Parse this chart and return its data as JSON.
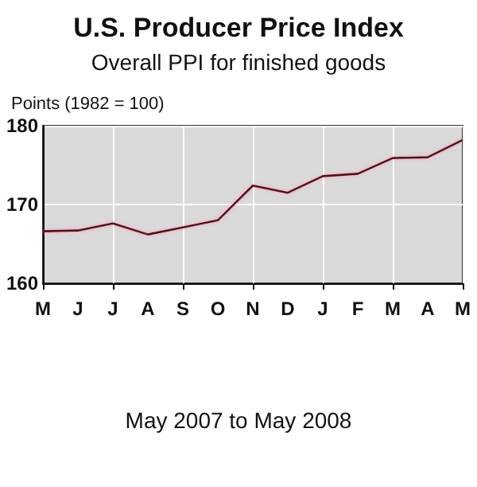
{
  "chart_data": {
    "type": "line",
    "title": "U.S. Producer Price Index",
    "subtitle": "Overall PPI for finished goods",
    "ylabel": "Points (1982 = 100)",
    "xlabel": "May 2007 to May 2008",
    "categories": [
      "M",
      "J",
      "J",
      "A",
      "S",
      "O",
      "N",
      "D",
      "J",
      "F",
      "M",
      "A",
      "M"
    ],
    "series": [
      {
        "color": "#5a0f1e",
        "values": [
          166.6,
          166.7,
          167.6,
          166.2,
          167.1,
          168.0,
          172.4,
          171.5,
          173.6,
          173.9,
          175.9,
          176.0,
          178.2
        ]
      }
    ],
    "ylim": [
      160,
      180
    ],
    "yticks": [
      160,
      170,
      180
    ],
    "grid": true,
    "marker": "none",
    "line_style": "solid"
  }
}
